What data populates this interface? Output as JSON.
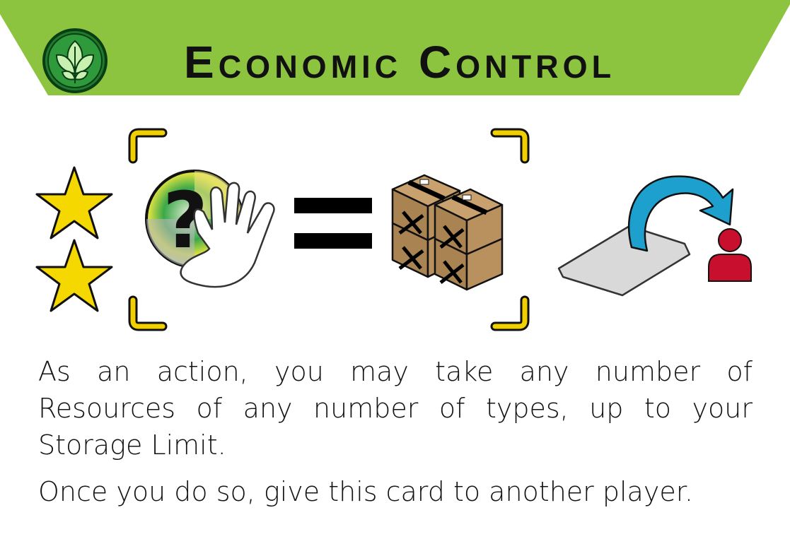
{
  "card": {
    "title": "Economic Control",
    "emblem_icon": "leaf-emblem-icon",
    "banner_color": "#8cc43f",
    "accent_color": "#f2d000",
    "rules": [
      "As an action, you may take any number of Resources of any number of types, up to your Storage Limit.",
      "Once you do so, give this card to another player."
    ],
    "icons": [
      "star-icon",
      "star-icon",
      "unknown-resource-hand-icon",
      "equals-icon",
      "resource-crates-icon",
      "give-card-to-player-icon"
    ]
  }
}
